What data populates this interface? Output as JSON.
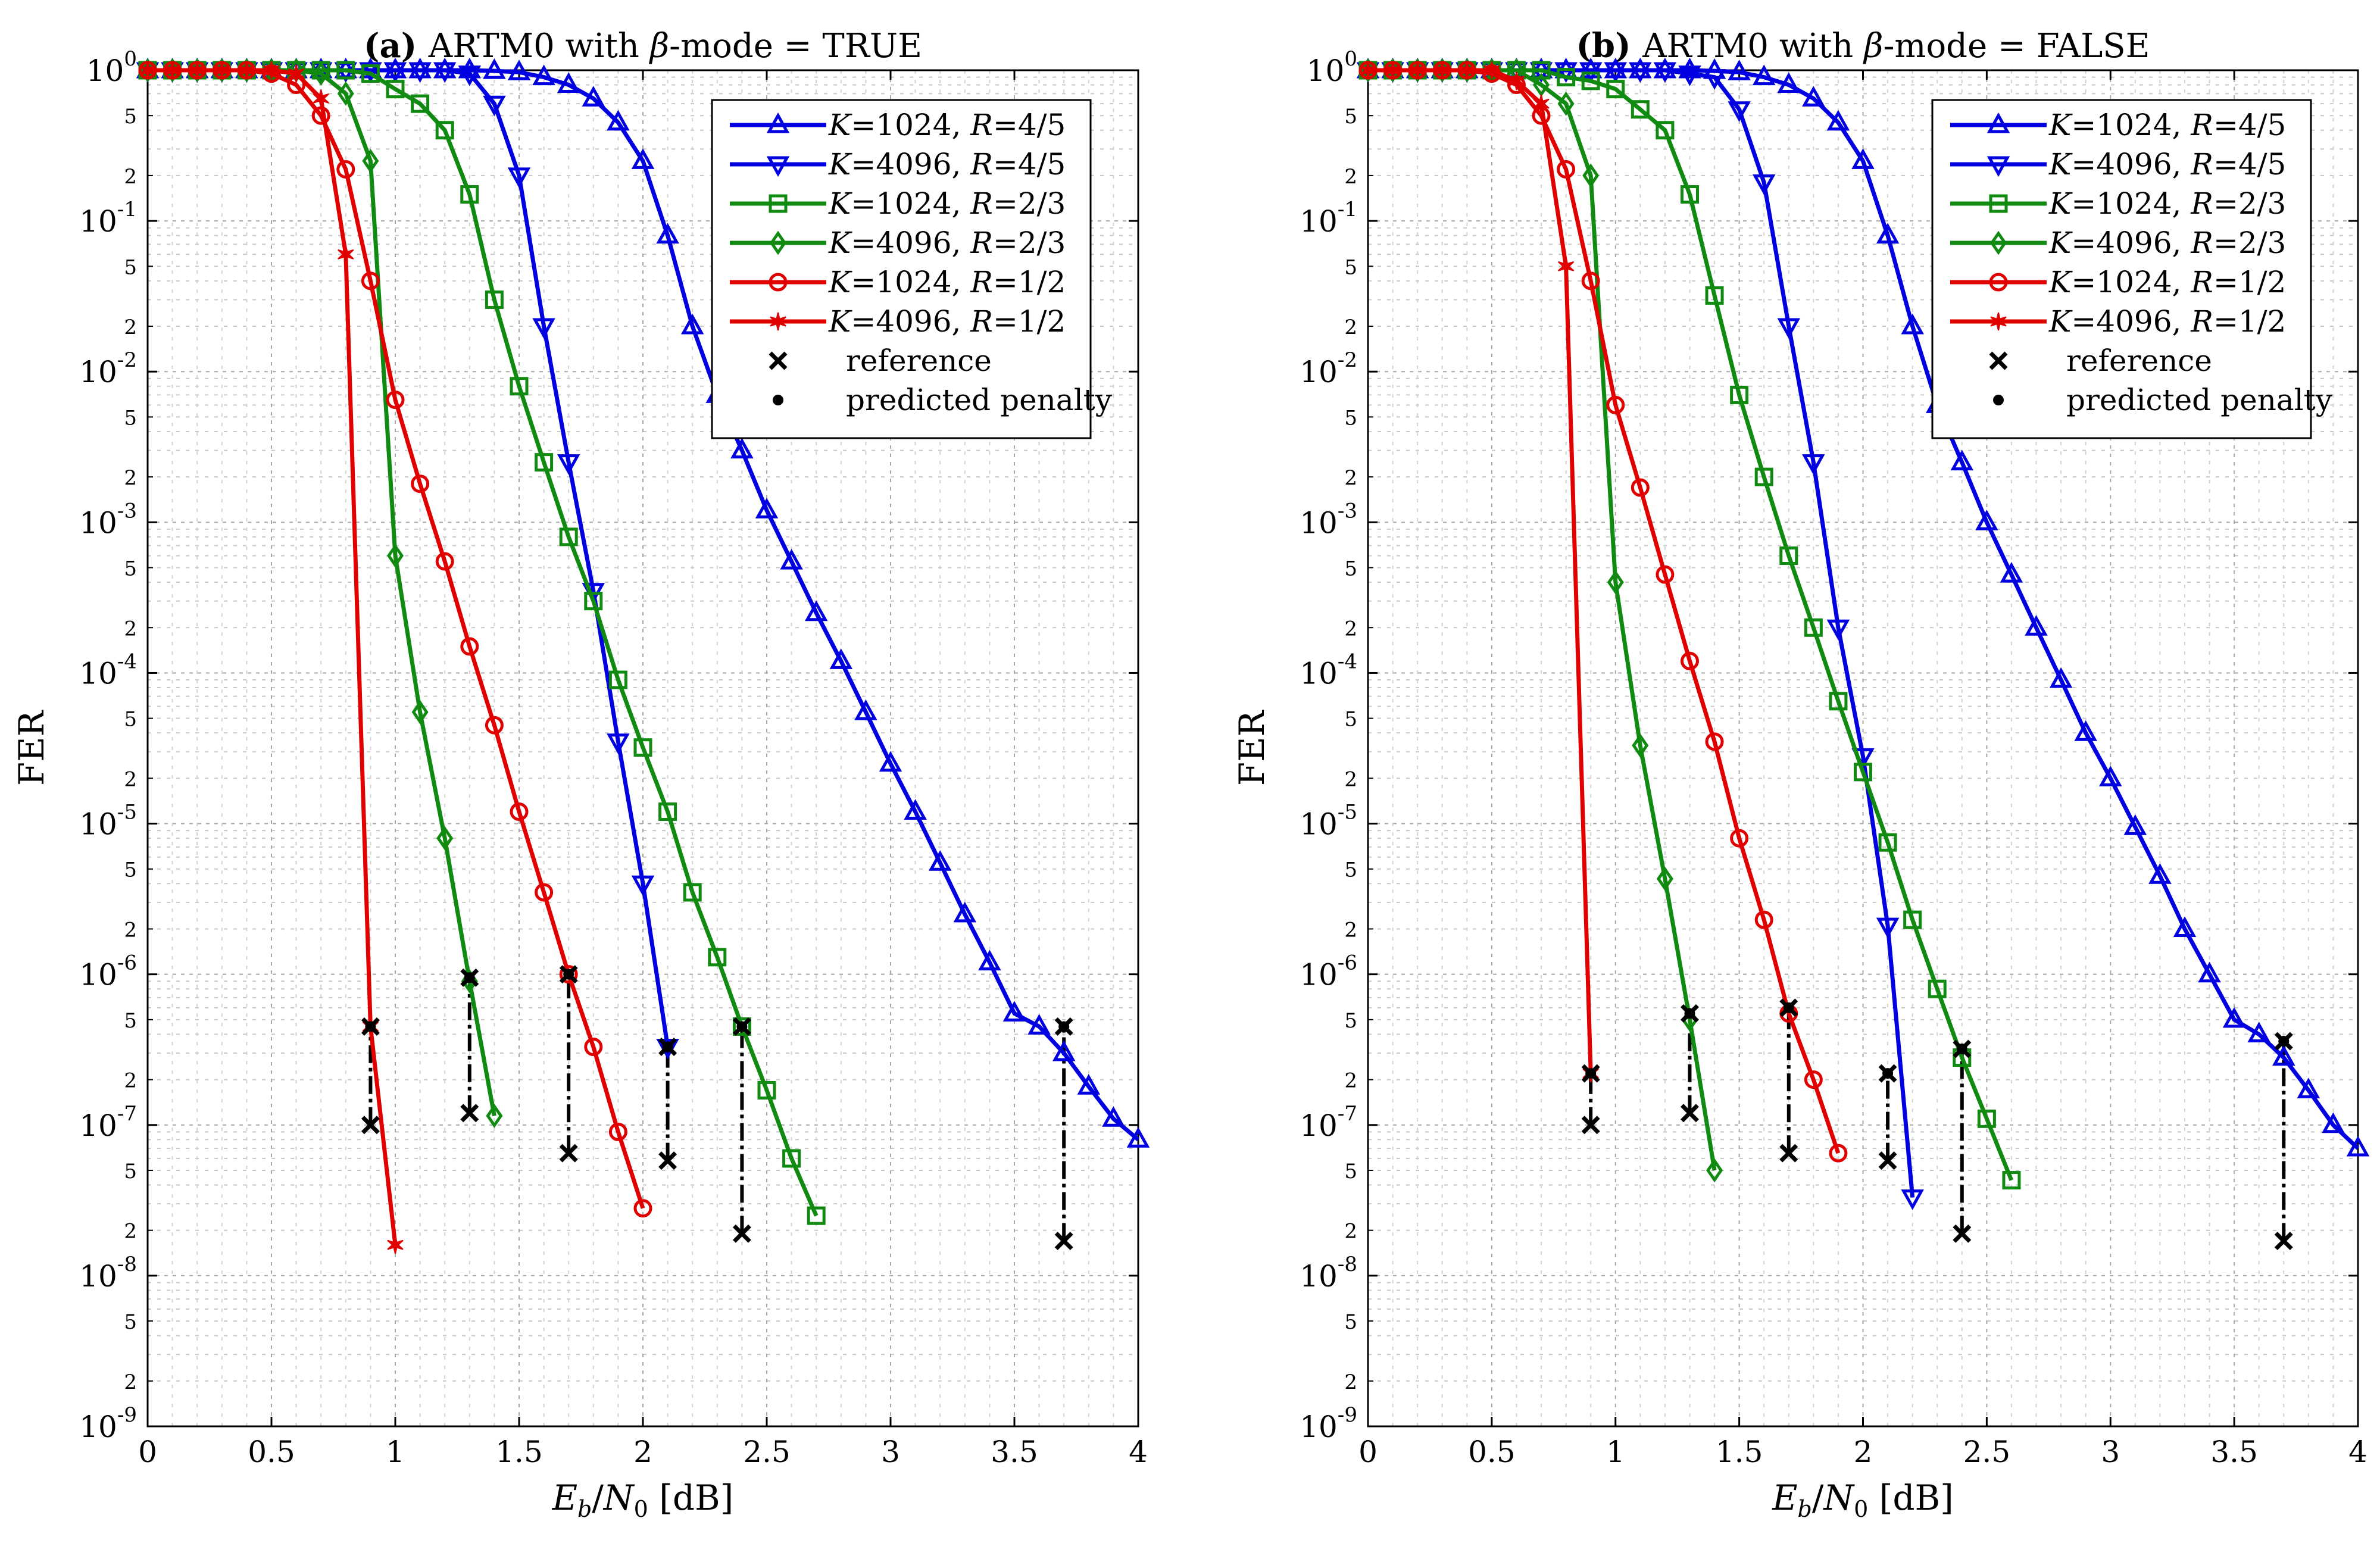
{
  "chart_data": [
    {
      "type": "line",
      "panel": "a",
      "title_prefix": "(a)",
      "title": "ARTM0 with β-mode = TRUE",
      "xlabel": "E_b/N_0 [dB]",
      "ylabel": "FER",
      "xlim": [
        0,
        4
      ],
      "ylim": [
        1e-09,
        1
      ],
      "yscale": "log",
      "grid": true,
      "legend_position": "top-right",
      "x_ticks": [
        "0",
        "0.5",
        "1",
        "1.5",
        "2",
        "2.5",
        "3",
        "3.5",
        "4"
      ],
      "y_decades": [
        "10^0",
        "10^-1",
        "10^-2",
        "10^-3",
        "10^-4",
        "10^-5",
        "10^-6",
        "10^-7",
        "10^-8",
        "10^-9"
      ],
      "y_minor_labels": [
        "5",
        "2"
      ],
      "series": [
        {
          "name": "K=1024, R=4/5",
          "K": "1024",
          "R": "4/5",
          "color": "#0000e0",
          "marker": "triangle-up",
          "x": [
            0,
            0.1,
            0.2,
            0.3,
            0.4,
            0.5,
            0.6,
            0.7,
            0.8,
            0.9,
            1.0,
            1.1,
            1.2,
            1.3,
            1.4,
            1.5,
            1.6,
            1.7,
            1.8,
            1.9,
            2.0,
            2.1,
            2.2,
            2.3,
            2.4,
            2.5,
            2.6,
            2.7,
            2.8,
            2.9,
            3.0,
            3.1,
            3.2,
            3.3,
            3.4,
            3.5,
            3.6,
            3.7,
            3.8,
            3.9,
            4.0
          ],
          "y": [
            1,
            1,
            1,
            1,
            1,
            1,
            1,
            1,
            1,
            1,
            1,
            1,
            1,
            1,
            0.99,
            0.97,
            0.9,
            0.8,
            0.65,
            0.45,
            0.25,
            0.08,
            0.02,
            0.007,
            0.003,
            0.0012,
            0.00055,
            0.00025,
            0.00012,
            5.5e-05,
            2.5e-05,
            1.2e-05,
            5.5e-06,
            2.5e-06,
            1.2e-06,
            5.5e-07,
            4.5e-07,
            3e-07,
            1.8e-07,
            1.1e-07,
            8e-08
          ]
        },
        {
          "name": "K=4096, R=4/5",
          "K": "4096",
          "R": "4/5",
          "color": "#0000e0",
          "marker": "triangle-down",
          "x": [
            0,
            0.1,
            0.2,
            0.3,
            0.4,
            0.5,
            0.6,
            0.7,
            0.8,
            0.9,
            1.0,
            1.1,
            1.2,
            1.3,
            1.4,
            1.5,
            1.6,
            1.7,
            1.8,
            1.9,
            2.0,
            2.1
          ],
          "y": [
            1,
            1,
            1,
            1,
            1,
            1,
            1,
            1,
            1,
            1,
            1,
            1,
            1,
            0.95,
            0.6,
            0.2,
            0.02,
            0.0025,
            0.00035,
            3.5e-05,
            4e-06,
            3.3e-07
          ]
        },
        {
          "name": "K=1024, R=2/3",
          "K": "1024",
          "R": "2/3",
          "color": "#108a10",
          "marker": "square",
          "x": [
            0,
            0.1,
            0.2,
            0.3,
            0.4,
            0.5,
            0.6,
            0.7,
            0.8,
            0.9,
            1.0,
            1.1,
            1.2,
            1.3,
            1.4,
            1.5,
            1.6,
            1.7,
            1.8,
            1.9,
            2.0,
            2.1,
            2.2,
            2.3,
            2.4,
            2.5,
            2.6,
            2.7
          ],
          "y": [
            1,
            1,
            1,
            1,
            1,
            1,
            1,
            1,
            1,
            0.95,
            0.75,
            0.6,
            0.4,
            0.15,
            0.03,
            0.008,
            0.0025,
            0.0008,
            0.0003,
            9e-05,
            3.2e-05,
            1.2e-05,
            3.5e-06,
            1.3e-06,
            4.5e-07,
            1.7e-07,
            6e-08,
            2.5e-08
          ]
        },
        {
          "name": "K=4096, R=2/3",
          "K": "4096",
          "R": "2/3",
          "color": "#108a10",
          "marker": "diamond",
          "x": [
            0,
            0.1,
            0.2,
            0.3,
            0.4,
            0.5,
            0.6,
            0.7,
            0.8,
            0.9,
            1.0,
            1.1,
            1.2,
            1.3,
            1.4
          ],
          "y": [
            1,
            1,
            1,
            1,
            1,
            1,
            1,
            0.95,
            0.7,
            0.25,
            0.0006,
            5.5e-05,
            8e-06,
            9e-07,
            1.15e-07
          ]
        },
        {
          "name": "K=1024, R=1/2",
          "K": "1024",
          "R": "1/2",
          "color": "#e00000",
          "marker": "circle",
          "x": [
            0,
            0.1,
            0.2,
            0.3,
            0.4,
            0.5,
            0.6,
            0.7,
            0.8,
            0.9,
            1.0,
            1.1,
            1.2,
            1.3,
            1.4,
            1.5,
            1.6,
            1.7,
            1.8,
            1.9,
            2.0
          ],
          "y": [
            1,
            1,
            1,
            1,
            1,
            0.95,
            0.8,
            0.5,
            0.22,
            0.04,
            0.0065,
            0.0018,
            0.00055,
            0.00015,
            4.5e-05,
            1.2e-05,
            3.5e-06,
            1e-06,
            3.3e-07,
            9e-08,
            2.8e-08
          ]
        },
        {
          "name": "K=4096, R=1/2",
          "K": "4096",
          "R": "1/2",
          "color": "#e00000",
          "marker": "star",
          "x": [
            0,
            0.1,
            0.2,
            0.3,
            0.4,
            0.5,
            0.6,
            0.7,
            0.8,
            0.9,
            1.0
          ],
          "y": [
            1,
            1,
            1,
            1,
            1,
            1,
            0.95,
            0.65,
            0.06,
            4.5e-07,
            1.6e-08
          ]
        }
      ],
      "reference_points": {
        "x": [
          0.9,
          1.3,
          1.7,
          2.1,
          2.4,
          3.7
        ],
        "y": [
          1e-07,
          1.2e-07,
          6.5e-08,
          5.8e-08,
          1.9e-08,
          1.7e-08
        ]
      },
      "predicted_penalty_points": {
        "x": [
          0.9,
          1.3,
          1.7,
          2.1,
          2.4,
          3.7
        ],
        "y": [
          4.5e-07,
          9.5e-07,
          1e-06,
          3.3e-07,
          4.5e-07,
          4.5e-07
        ]
      },
      "legend_extra": [
        "reference",
        "predicted penalty"
      ]
    },
    {
      "type": "line",
      "panel": "b",
      "title_prefix": "(b)",
      "title": "ARTM0 with β-mode = FALSE",
      "xlabel": "E_b/N_0 [dB]",
      "ylabel": "FER",
      "xlim": [
        0,
        4
      ],
      "ylim": [
        1e-09,
        1
      ],
      "yscale": "log",
      "grid": true,
      "legend_position": "top-right",
      "x_ticks": [
        "0",
        "0.5",
        "1",
        "1.5",
        "2",
        "2.5",
        "3",
        "3.5",
        "4"
      ],
      "y_decades": [
        "10^0",
        "10^-1",
        "10^-2",
        "10^-3",
        "10^-4",
        "10^-5",
        "10^-6",
        "10^-7",
        "10^-8",
        "10^-9"
      ],
      "y_minor_labels": [
        "5",
        "2"
      ],
      "series": [
        {
          "name": "K=1024, R=4/5",
          "K": "1024",
          "R": "4/5",
          "color": "#0000e0",
          "marker": "triangle-up",
          "x": [
            0,
            0.1,
            0.2,
            0.3,
            0.4,
            0.5,
            0.6,
            0.7,
            0.8,
            0.9,
            1.0,
            1.1,
            1.2,
            1.3,
            1.4,
            1.5,
            1.6,
            1.7,
            1.8,
            1.9,
            2.0,
            2.1,
            2.2,
            2.3,
            2.4,
            2.5,
            2.6,
            2.7,
            2.8,
            2.9,
            3.0,
            3.1,
            3.2,
            3.3,
            3.4,
            3.5,
            3.6,
            3.7,
            3.8,
            3.9,
            4.0
          ],
          "y": [
            1,
            1,
            1,
            1,
            1,
            1,
            1,
            1,
            1,
            1,
            1,
            1,
            1,
            1,
            0.99,
            0.97,
            0.9,
            0.8,
            0.65,
            0.45,
            0.25,
            0.08,
            0.02,
            0.006,
            0.0025,
            0.001,
            0.00045,
            0.0002,
            9e-05,
            4e-05,
            2e-05,
            9.5e-06,
            4.5e-06,
            2e-06,
            1e-06,
            5e-07,
            4e-07,
            2.8e-07,
            1.7e-07,
            1e-07,
            7e-08
          ]
        },
        {
          "name": "K=4096, R=4/5",
          "K": "4096",
          "R": "4/5",
          "color": "#0000e0",
          "marker": "triangle-down",
          "x": [
            0,
            0.1,
            0.2,
            0.3,
            0.4,
            0.5,
            0.6,
            0.7,
            0.8,
            0.9,
            1.0,
            1.1,
            1.2,
            1.3,
            1.4,
            1.5,
            1.6,
            1.7,
            1.8,
            1.9,
            2.0,
            2.1,
            2.2
          ],
          "y": [
            1,
            1,
            1,
            1,
            1,
            1,
            1,
            1,
            1,
            1,
            1,
            1,
            1,
            0.95,
            0.9,
            0.55,
            0.18,
            0.02,
            0.0025,
            0.0002,
            2.8e-05,
            2.1e-06,
            3.3e-08
          ]
        },
        {
          "name": "K=1024, R=2/3",
          "K": "1024",
          "R": "2/3",
          "color": "#108a10",
          "marker": "square",
          "x": [
            0,
            0.1,
            0.2,
            0.3,
            0.4,
            0.5,
            0.6,
            0.7,
            0.8,
            0.9,
            1.0,
            1.1,
            1.2,
            1.3,
            1.4,
            1.5,
            1.6,
            1.7,
            1.8,
            1.9,
            2.0,
            2.1,
            2.2,
            2.3,
            2.4,
            2.5,
            2.6
          ],
          "y": [
            1,
            1,
            1,
            1,
            1,
            1,
            1,
            1,
            0.9,
            0.85,
            0.75,
            0.55,
            0.4,
            0.15,
            0.032,
            0.007,
            0.002,
            0.0006,
            0.0002,
            6.5e-05,
            2.2e-05,
            7.5e-06,
            2.3e-06,
            8e-07,
            2.8e-07,
            1.1e-07,
            4.3e-08
          ]
        },
        {
          "name": "K=4096, R=2/3",
          "K": "4096",
          "R": "2/3",
          "color": "#108a10",
          "marker": "diamond",
          "x": [
            0,
            0.1,
            0.2,
            0.3,
            0.4,
            0.5,
            0.6,
            0.7,
            0.8,
            0.9,
            1.0,
            1.1,
            1.2,
            1.3,
            1.4
          ],
          "y": [
            1,
            1,
            1,
            1,
            1,
            1,
            1,
            0.8,
            0.6,
            0.2,
            0.0004,
            3.3e-05,
            4.3e-06,
            5e-07,
            5e-08
          ]
        },
        {
          "name": "K=1024, R=1/2",
          "K": "1024",
          "R": "1/2",
          "color": "#e00000",
          "marker": "circle",
          "x": [
            0,
            0.1,
            0.2,
            0.3,
            0.4,
            0.5,
            0.6,
            0.7,
            0.8,
            0.9,
            1.0,
            1.1,
            1.2,
            1.3,
            1.4,
            1.5,
            1.6,
            1.7,
            1.8,
            1.9
          ],
          "y": [
            1,
            1,
            1,
            1,
            1,
            0.95,
            0.8,
            0.5,
            0.22,
            0.04,
            0.006,
            0.0017,
            0.00045,
            0.00012,
            3.5e-05,
            8e-06,
            2.3e-06,
            5.5e-07,
            2e-07,
            6.5e-08
          ]
        },
        {
          "name": "K=4096, R=1/2",
          "K": "4096",
          "R": "1/2",
          "color": "#e00000",
          "marker": "star",
          "x": [
            0,
            0.1,
            0.2,
            0.3,
            0.4,
            0.5,
            0.6,
            0.7,
            0.8,
            0.9
          ],
          "y": [
            1,
            1,
            1,
            1,
            1,
            1,
            0.85,
            0.6,
            0.05,
            2.2e-07
          ]
        }
      ],
      "reference_points": {
        "x": [
          0.9,
          1.3,
          1.7,
          2.1,
          2.4,
          3.7
        ],
        "y": [
          1e-07,
          1.2e-07,
          6.5e-08,
          5.8e-08,
          1.9e-08,
          1.7e-08
        ]
      },
      "predicted_penalty_points": {
        "x": [
          0.9,
          1.3,
          1.7,
          2.1,
          2.4,
          3.7
        ],
        "y": [
          2.2e-07,
          5.5e-07,
          6e-07,
          2.2e-07,
          3.2e-07,
          3.6e-07
        ]
      },
      "legend_extra": [
        "reference",
        "predicted penalty"
      ]
    }
  ]
}
